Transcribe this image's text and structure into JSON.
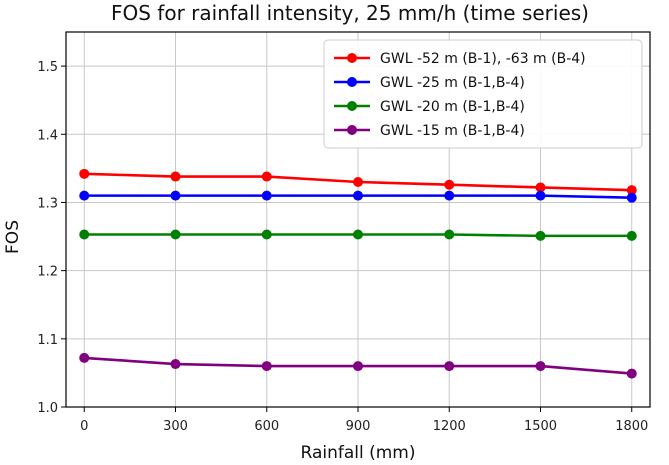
{
  "chart_data": {
    "type": "line",
    "title": "FOS for rainfall intensity, 25 mm/h (time series)",
    "xlabel": "Rainfall (mm)",
    "ylabel": "FOS",
    "x": [
      0,
      300,
      600,
      900,
      1200,
      1500,
      1800
    ],
    "x_tick_labels": [
      "0",
      "300",
      "600",
      "900",
      "1200",
      "1500",
      "1800"
    ],
    "y_ticks": [
      1.0,
      1.1,
      1.2,
      1.3,
      1.4,
      1.5
    ],
    "y_tick_labels": [
      "1.0",
      "1.1",
      "1.2",
      "1.3",
      "1.4",
      "1.5"
    ],
    "xlim": [
      -60,
      1860
    ],
    "ylim": [
      1.0,
      1.55
    ],
    "grid": true,
    "legend_position": "top-right",
    "series": [
      {
        "name": "GWL -52 m (B-1), -63 m (B-4)",
        "color": "#ff0000",
        "values": [
          1.342,
          1.338,
          1.338,
          1.33,
          1.326,
          1.322,
          1.318
        ]
      },
      {
        "name": "GWL -25 m (B-1,B-4)",
        "color": "#0000ff",
        "values": [
          1.31,
          1.31,
          1.31,
          1.31,
          1.31,
          1.31,
          1.307
        ]
      },
      {
        "name": "GWL -20 m (B-1,B-4)",
        "color": "#008000",
        "values": [
          1.253,
          1.253,
          1.253,
          1.253,
          1.253,
          1.251,
          1.251
        ]
      },
      {
        "name": "GWL -15 m (B-1,B-4)",
        "color": "#800080",
        "values": [
          1.072,
          1.063,
          1.06,
          1.06,
          1.06,
          1.06,
          1.049
        ]
      }
    ]
  }
}
